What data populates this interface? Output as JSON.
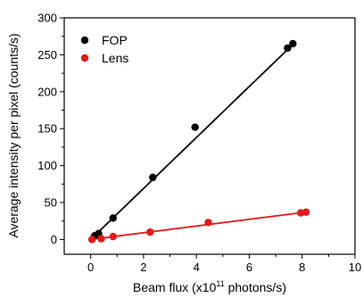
{
  "chart_data": {
    "type": "scatter",
    "xlabel": "Beam flux (x10",
    "xlabel_superscript": "11",
    "xlabel_suffix": " photons/s)",
    "ylabel": "Average intensity per pixel (counts/s)",
    "xlim": [
      -1,
      10
    ],
    "ylim": [
      -20,
      300
    ],
    "xticks": [
      0,
      2,
      4,
      6,
      8,
      10
    ],
    "yticks": [
      0,
      50,
      100,
      150,
      200,
      250,
      300
    ],
    "legend_position": "top-left",
    "grid": false,
    "series": [
      {
        "name": "FOP",
        "color": "#000000",
        "points": [
          [
            0.15,
            5
          ],
          [
            0.3,
            8
          ],
          [
            0.85,
            29
          ],
          [
            2.35,
            84
          ],
          [
            3.95,
            152
          ],
          [
            7.45,
            259
          ],
          [
            7.65,
            265
          ]
        ],
        "fit": {
          "slope": 34.5,
          "intercept": 0,
          "x_range": [
            0.1,
            7.65
          ]
        }
      },
      {
        "name": "Lens",
        "color": "#e31a1c",
        "points": [
          [
            0.05,
            0
          ],
          [
            0.4,
            1
          ],
          [
            0.85,
            4
          ],
          [
            2.25,
            10
          ],
          [
            4.45,
            23
          ],
          [
            7.95,
            36
          ],
          [
            8.15,
            37
          ]
        ],
        "fit": {
          "slope": 4.55,
          "intercept": 0,
          "x_range": [
            0.05,
            8.15
          ]
        }
      }
    ]
  }
}
